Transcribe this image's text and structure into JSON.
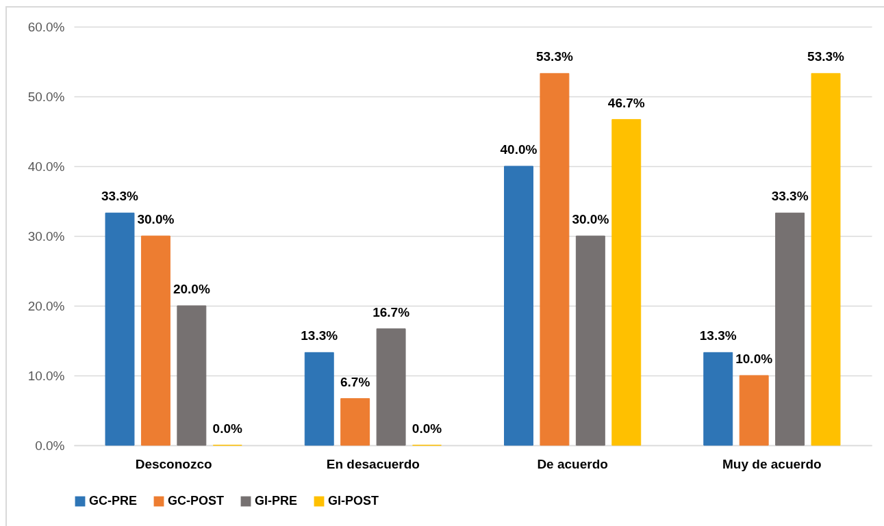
{
  "chart_data": {
    "type": "bar",
    "categories": [
      "Desconozco",
      "En desacuerdo",
      "De acuerdo",
      "Muy de acuerdo"
    ],
    "series": [
      {
        "name": "GC-PRE",
        "color": "#2e75b6",
        "values": [
          33.3,
          13.3,
          40.0,
          13.3
        ],
        "value_labels": [
          "33.3%",
          "13.3%",
          "40.0%",
          "13.3%"
        ]
      },
      {
        "name": "GC-POST",
        "color": "#ed7d31",
        "values": [
          30.0,
          6.7,
          53.3,
          10.0
        ],
        "value_labels": [
          "30.0%",
          "6.7%",
          "53.3%",
          "10.0%"
        ]
      },
      {
        "name": "GI-PRE",
        "color": "#767171",
        "values": [
          20.0,
          16.7,
          30.0,
          33.3
        ],
        "value_labels": [
          "20.0%",
          "16.7%",
          "30.0%",
          "33.3%"
        ]
      },
      {
        "name": "GI-POST",
        "color": "#ffc000",
        "values": [
          0.0,
          0.0,
          46.7,
          53.3
        ],
        "value_labels": [
          "0.0%",
          "0.0%",
          "46.7%",
          "53.3%"
        ]
      }
    ],
    "ylim": [
      0,
      60
    ],
    "yticks": [
      {
        "value": 0,
        "label": "0.0%"
      },
      {
        "value": 10,
        "label": "10.0%"
      },
      {
        "value": 20,
        "label": "20.0%"
      },
      {
        "value": 30,
        "label": "30.0%"
      },
      {
        "value": 40,
        "label": "40.0%"
      },
      {
        "value": 50,
        "label": "50.0%"
      },
      {
        "value": 60,
        "label": "60.0%"
      }
    ],
    "grid": "y",
    "legend": "bottom"
  }
}
